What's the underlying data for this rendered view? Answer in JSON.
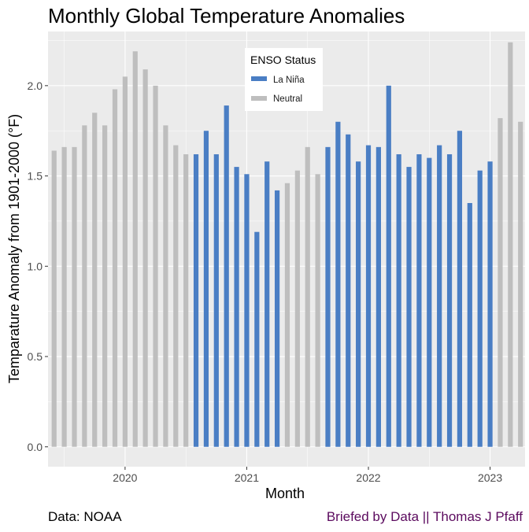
{
  "chart_data": {
    "type": "bar",
    "title": "Monthly Global Temperature Anomalies",
    "xlabel": "Month",
    "ylabel": "Temparature Anomaly from 1901-2000 (°F)",
    "ylim": [
      -0.11,
      2.3
    ],
    "y_ticks": [
      0.0,
      0.5,
      1.0,
      1.5,
      2.0
    ],
    "x_ticks": [
      "2020",
      "2021",
      "2022",
      "2023"
    ],
    "grid": true,
    "legend": {
      "title": "ENSO Status",
      "placement": "top-center",
      "entries": [
        "La Niña",
        "Neutral"
      ]
    },
    "colors": {
      "La Niña": "#4A7EC4",
      "Neutral": "#BEBEBE"
    },
    "months": [
      "2019-06",
      "2019-07",
      "2019-08",
      "2019-09",
      "2019-10",
      "2019-11",
      "2019-12",
      "2020-01",
      "2020-02",
      "2020-03",
      "2020-04",
      "2020-05",
      "2020-06",
      "2020-07",
      "2020-08",
      "2020-09",
      "2020-10",
      "2020-11",
      "2020-12",
      "2021-01",
      "2021-02",
      "2021-03",
      "2021-04",
      "2021-05",
      "2021-06",
      "2021-07",
      "2021-08",
      "2021-09",
      "2021-10",
      "2021-11",
      "2021-12",
      "2022-01",
      "2022-02",
      "2022-03",
      "2022-04",
      "2022-05",
      "2022-06",
      "2022-07",
      "2022-08",
      "2022-09",
      "2022-10",
      "2022-11",
      "2022-12",
      "2023-01",
      "2023-02",
      "2023-03",
      "2023-04"
    ],
    "values": [
      1.64,
      1.66,
      1.66,
      1.78,
      1.85,
      1.78,
      1.98,
      2.05,
      2.19,
      2.09,
      2.0,
      1.78,
      1.67,
      1.62,
      1.62,
      1.75,
      1.62,
      1.89,
      1.55,
      1.51,
      1.19,
      1.58,
      1.42,
      1.46,
      1.53,
      1.66,
      1.51,
      1.66,
      1.8,
      1.73,
      1.58,
      1.67,
      1.66,
      2.0,
      1.62,
      1.55,
      1.62,
      1.6,
      1.67,
      1.62,
      1.75,
      1.35,
      1.53,
      1.58,
      1.82,
      2.24,
      1.8
    ],
    "status": [
      "Neutral",
      "Neutral",
      "Neutral",
      "Neutral",
      "Neutral",
      "Neutral",
      "Neutral",
      "Neutral",
      "Neutral",
      "Neutral",
      "Neutral",
      "Neutral",
      "Neutral",
      "Neutral",
      "La Niña",
      "La Niña",
      "La Niña",
      "La Niña",
      "La Niña",
      "La Niña",
      "La Niña",
      "La Niña",
      "La Niña",
      "Neutral",
      "Neutral",
      "Neutral",
      "Neutral",
      "La Niña",
      "La Niña",
      "La Niña",
      "La Niña",
      "La Niña",
      "La Niña",
      "La Niña",
      "La Niña",
      "La Niña",
      "La Niña",
      "La Niña",
      "La Niña",
      "La Niña",
      "La Niña",
      "La Niña",
      "La Niña",
      "La Niña",
      "Neutral",
      "Neutral",
      "Neutral"
    ]
  },
  "caption": {
    "source": "Data: NOAA",
    "credit": "Briefed by Data || Thomas J Pfaff"
  }
}
